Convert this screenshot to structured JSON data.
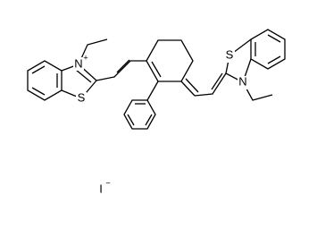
{
  "atoms": {
    "left_n": "N",
    "left_n_charge": "+",
    "left_s": "S",
    "right_s": "S",
    "right_n": "N"
  },
  "counterion": {
    "symbol": "I",
    "charge": "−"
  }
}
